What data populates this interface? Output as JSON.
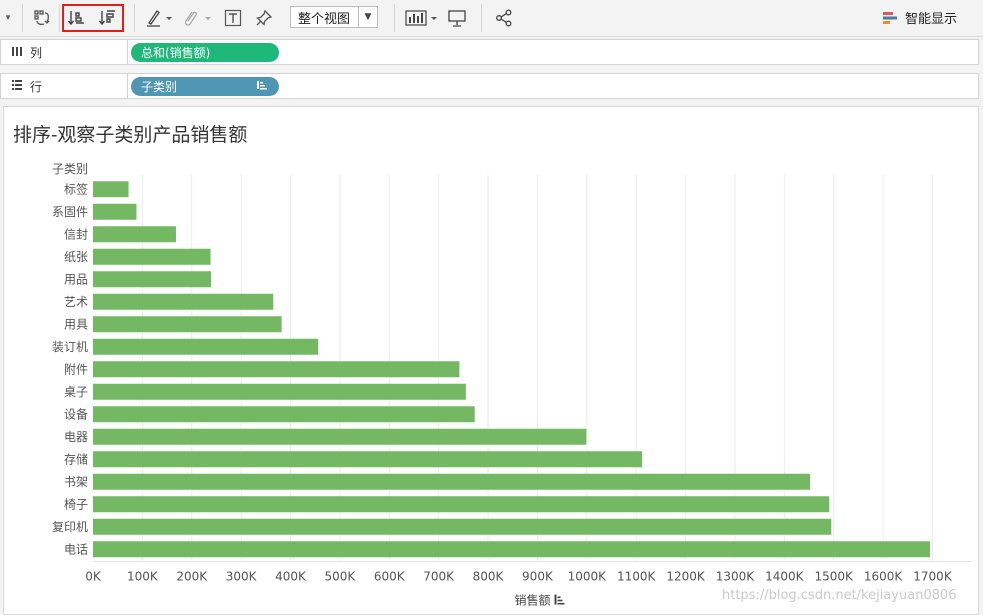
{
  "toolbar": {
    "icons": [
      "dropdown-arrow-icon",
      "swap-axes-icon",
      "sort-ascending-icon",
      "sort-descending-icon",
      "highlight-icon",
      "paperclip-icon",
      "text-label-icon",
      "pin-icon",
      "show-me-bar-icon",
      "presentation-icon",
      "share-icon"
    ],
    "view_select": "整个视图",
    "smart_label": "智能显示",
    "smart_colors": [
      "#e15759",
      "#4e79a7",
      "#f28e2b"
    ]
  },
  "shelves": {
    "columns": {
      "label": "列",
      "pill": "总和(销售额)",
      "color": "#1fb87a"
    },
    "rows": {
      "label": "行",
      "pill": "子类别",
      "color": "#4e96b4"
    }
  },
  "sheet": {
    "title": "排序-观察子类别产品销售额"
  },
  "chart_data": {
    "type": "bar",
    "orientation": "horizontal",
    "y_header": "子类别",
    "xlabel": "销售额",
    "bar_color": "#74b863",
    "xlim": [
      0,
      1780000
    ],
    "x_ticks": [
      0,
      100000,
      200000,
      300000,
      400000,
      500000,
      600000,
      700000,
      800000,
      900000,
      1000000,
      1100000,
      1200000,
      1300000,
      1400000,
      1500000,
      1600000,
      1700000
    ],
    "x_tick_labels": [
      "0K",
      "100K",
      "200K",
      "300K",
      "400K",
      "500K",
      "600K",
      "700K",
      "800K",
      "900K",
      "1000K",
      "1100K",
      "1200K",
      "1300K",
      "1400K",
      "1500K",
      "1600K",
      "1700K"
    ],
    "categories": [
      "标签",
      "系固件",
      "信封",
      "纸张",
      "用品",
      "艺术",
      "用具",
      "装订机",
      "附件",
      "桌子",
      "设备",
      "电器",
      "存储",
      "书架",
      "椅子",
      "复印机",
      "电话"
    ],
    "values": [
      72000,
      88000,
      168000,
      238000,
      239000,
      365000,
      382000,
      456000,
      742000,
      755000,
      773000,
      999000,
      1112000,
      1452000,
      1491000,
      1495000,
      1695000
    ]
  },
  "watermark": "https://blog.csdn.net/kejiayuan0806"
}
